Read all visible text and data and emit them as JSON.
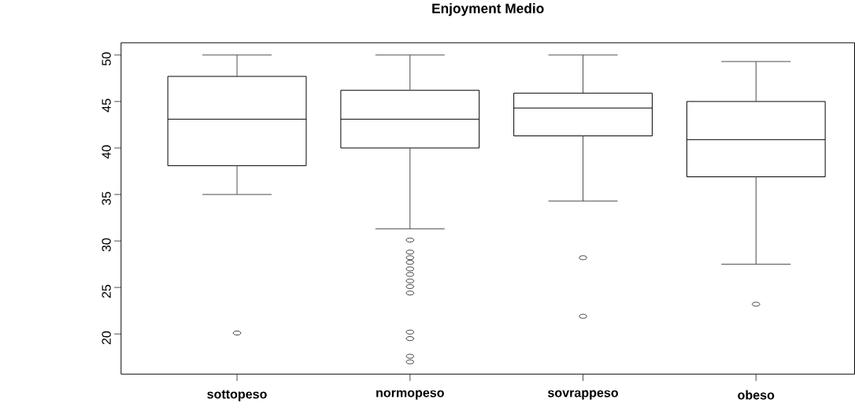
{
  "chart_data": {
    "type": "box",
    "title": "Enjoyment Medio",
    "categories": [
      "sottopeso",
      "normopeso",
      "sovrappeso",
      "obeso"
    ],
    "boxes": [
      {
        "low": 35,
        "q1": 38.1,
        "median": 43.1,
        "q3": 47.7,
        "high": 50,
        "outliers": [
          20.1
        ]
      },
      {
        "low": 31.3,
        "q1": 40,
        "median": 43.1,
        "q3": 46.2,
        "high": 50,
        "outliers": [
          30.1,
          28.8,
          28.2,
          27.7,
          27,
          26.4,
          25.7,
          25.1,
          24.4,
          20.2,
          19.5,
          17.6,
          17
        ]
      },
      {
        "low": 34.3,
        "q1": 41.3,
        "median": 44.3,
        "q3": 45.9,
        "high": 50,
        "outliers": [
          28.2,
          21.9
        ]
      },
      {
        "low": 27.5,
        "q1": 36.9,
        "median": 40.9,
        "q3": 45,
        "high": 49.3,
        "outliers": [
          23.2
        ]
      }
    ],
    "ylim": [
      15.68,
      51.32
    ],
    "yticks": [
      20,
      25,
      30,
      35,
      40,
      45,
      50
    ]
  }
}
